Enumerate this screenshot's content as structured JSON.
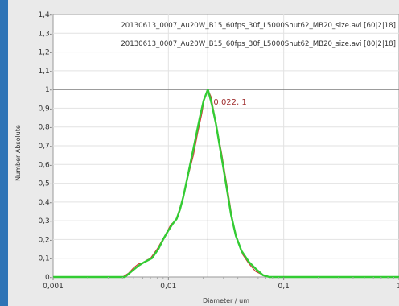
{
  "chart_data": {
    "type": "line",
    "xlabel": "Diameter / um",
    "ylabel": "Number Absolute",
    "xscale": "log",
    "xlim": [
      0.001,
      1
    ],
    "ylim": [
      0,
      1.4
    ],
    "x_ticks": [
      "0,001",
      "0,01",
      "0,1",
      "1"
    ],
    "y_ticks": [
      "0-",
      "0,1-",
      "0,2-",
      "0,3-",
      "0,4-",
      "0,5-",
      "0,6-",
      "0,7-",
      "0,8-",
      "0,9-",
      "1-",
      "1,1-",
      "1,2-",
      "1,3-",
      "1,4-"
    ],
    "grid": true,
    "legend_position": "top-right",
    "annotation": {
      "text": "0,022, 1",
      "x": 0.022,
      "y": 1
    },
    "crosshair": {
      "x": 0.022,
      "y": 1
    },
    "series": [
      {
        "name": "20130613_0007_Au20W_B15_60fps_30f_L5000Shut62_MB20_size.avi [60|2|18]",
        "color": "#d03030",
        "points": [
          [
            0.001,
            0
          ],
          [
            0.004,
            0
          ],
          [
            0.0045,
            0.02
          ],
          [
            0.005,
            0.05
          ],
          [
            0.0055,
            0.07
          ],
          [
            0.006,
            0.075
          ],
          [
            0.0065,
            0.09
          ],
          [
            0.007,
            0.1
          ],
          [
            0.008,
            0.15
          ],
          [
            0.0087,
            0.19
          ],
          [
            0.0095,
            0.23
          ],
          [
            0.0105,
            0.28
          ],
          [
            0.0115,
            0.3
          ],
          [
            0.012,
            0.33
          ],
          [
            0.013,
            0.4
          ],
          [
            0.014,
            0.47
          ],
          [
            0.015,
            0.55
          ],
          [
            0.0165,
            0.65
          ],
          [
            0.018,
            0.77
          ],
          [
            0.0195,
            0.87
          ],
          [
            0.0205,
            0.95
          ],
          [
            0.022,
            1.0
          ],
          [
            0.0235,
            0.96
          ],
          [
            0.025,
            0.87
          ],
          [
            0.027,
            0.76
          ],
          [
            0.029,
            0.66
          ],
          [
            0.031,
            0.55
          ],
          [
            0.033,
            0.45
          ],
          [
            0.035,
            0.35
          ],
          [
            0.037,
            0.27
          ],
          [
            0.04,
            0.19
          ],
          [
            0.044,
            0.12
          ],
          [
            0.05,
            0.07
          ],
          [
            0.057,
            0.03
          ],
          [
            0.066,
            0.01
          ],
          [
            0.075,
            0
          ],
          [
            1,
            0
          ]
        ]
      },
      {
        "name": "20130613_0007_Au20W_B15_60fps_30f_L5000Shut62_MB20_size.avi [80|2|18]",
        "color": "#33cc33",
        "points": [
          [
            0.001,
            0
          ],
          [
            0.0042,
            0
          ],
          [
            0.0048,
            0.03
          ],
          [
            0.0055,
            0.06
          ],
          [
            0.0062,
            0.08
          ],
          [
            0.0072,
            0.1
          ],
          [
            0.0082,
            0.15
          ],
          [
            0.009,
            0.2
          ],
          [
            0.0098,
            0.24
          ],
          [
            0.0108,
            0.28
          ],
          [
            0.0118,
            0.31
          ],
          [
            0.0126,
            0.36
          ],
          [
            0.0135,
            0.43
          ],
          [
            0.0145,
            0.52
          ],
          [
            0.0158,
            0.63
          ],
          [
            0.0172,
            0.74
          ],
          [
            0.0187,
            0.85
          ],
          [
            0.0202,
            0.94
          ],
          [
            0.022,
            1.0
          ],
          [
            0.0238,
            0.92
          ],
          [
            0.0258,
            0.82
          ],
          [
            0.0278,
            0.7
          ],
          [
            0.03,
            0.58
          ],
          [
            0.0325,
            0.45
          ],
          [
            0.035,
            0.33
          ],
          [
            0.0385,
            0.22
          ],
          [
            0.043,
            0.14
          ],
          [
            0.05,
            0.08
          ],
          [
            0.058,
            0.04
          ],
          [
            0.066,
            0.01
          ],
          [
            0.075,
            0
          ],
          [
            1,
            0
          ]
        ]
      }
    ]
  }
}
